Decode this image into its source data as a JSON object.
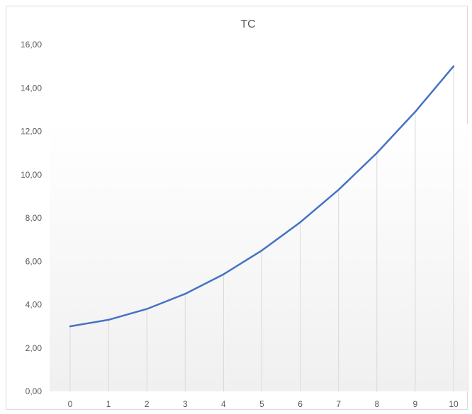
{
  "chart_data": {
    "type": "line",
    "title": "TC",
    "xlabel": "",
    "ylabel": "",
    "x": [
      0,
      1,
      2,
      3,
      4,
      5,
      6,
      7,
      8,
      9,
      10
    ],
    "x_tick_labels": [
      "0",
      "1",
      "2",
      "3",
      "4",
      "5",
      "6",
      "7",
      "8",
      "9",
      "10"
    ],
    "series": [
      {
        "values": [
          3.0,
          3.3,
          3.8,
          4.5,
          5.4,
          6.5,
          7.8,
          9.3,
          11.0,
          12.9,
          15.0
        ]
      }
    ],
    "ylim": [
      0,
      16
    ],
    "y_tick_values": [
      0,
      2,
      4,
      6,
      8,
      10,
      12,
      14,
      16
    ],
    "y_tick_labels": [
      "0,00",
      "2,00",
      "4,00",
      "6,00",
      "8,00",
      "10,00",
      "12,00",
      "14,00",
      "16,00"
    ],
    "grid": "vertical drop lines",
    "legend": "none",
    "colors": {
      "line": "#4472c4",
      "drop_line": "#d9d9d9",
      "text": "#595959",
      "frame": "#d9d9d9"
    }
  }
}
